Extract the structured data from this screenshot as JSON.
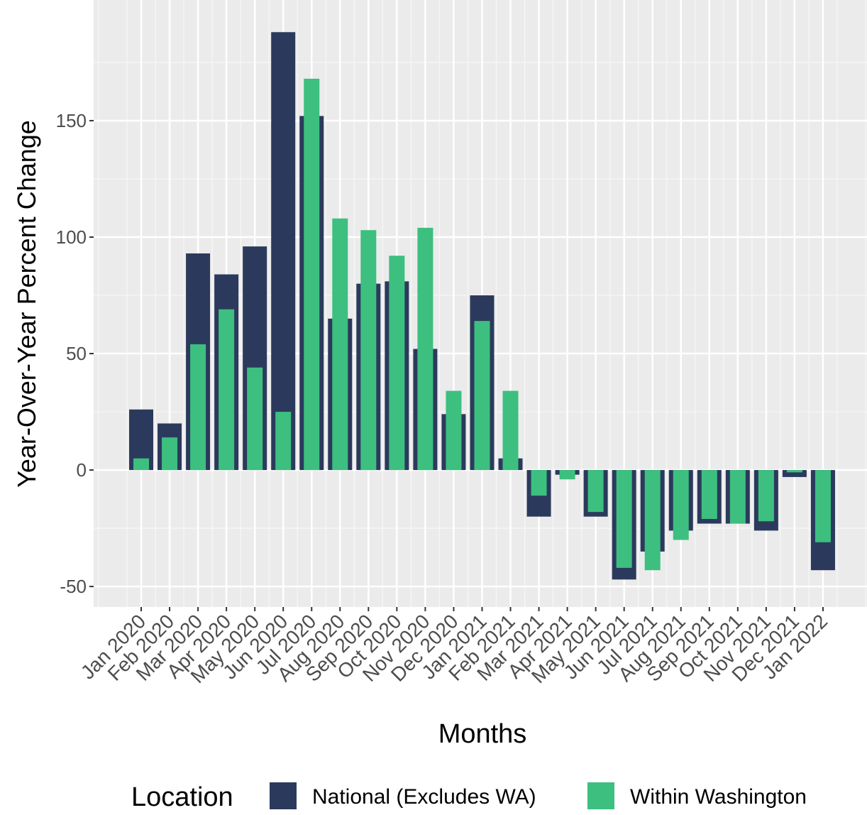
{
  "chart_data": {
    "type": "bar",
    "overlap": true,
    "x_label": "Months",
    "y_label": "Year-Over-Year Percent Change",
    "legend_title": "Location",
    "legend_position": "bottom",
    "grid": true,
    "categories": [
      "Jan 2020",
      "Feb 2020",
      "Mar 2020",
      "Apr 2020",
      "May 2020",
      "Jun 2020",
      "Jul 2020",
      "Aug 2020",
      "Sep 2020",
      "Oct 2020",
      "Nov 2020",
      "Dec 2020",
      "Jan 2021",
      "Feb 2021",
      "Mar 2021",
      "Apr 2021",
      "May 2021",
      "Jun 2021",
      "Jul 2021",
      "Aug 2021",
      "Sep 2021",
      "Oct 2021",
      "Nov 2021",
      "Dec 2021",
      "Jan 2022"
    ],
    "series": [
      {
        "name": "National (Excludes WA)",
        "color": "#2b3a5c",
        "values": [
          26,
          20,
          93,
          84,
          96,
          188,
          152,
          65,
          80,
          81,
          52,
          24,
          75,
          5,
          -20,
          -2,
          -20,
          -47,
          -35,
          -26,
          -23,
          -23,
          -26,
          -3,
          -43
        ]
      },
      {
        "name": "Within Washington",
        "color": "#3dbf7f",
        "values": [
          5,
          14,
          54,
          69,
          44,
          25,
          168,
          108,
          103,
          92,
          104,
          34,
          64,
          34,
          -11,
          -4,
          -18,
          -42,
          -43,
          -30,
          -21,
          -23,
          -22,
          -1,
          -31
        ]
      }
    ],
    "ylim": [
      -58.8,
      201.8
    ],
    "yticks": [
      -50,
      0,
      50,
      100,
      150
    ]
  }
}
